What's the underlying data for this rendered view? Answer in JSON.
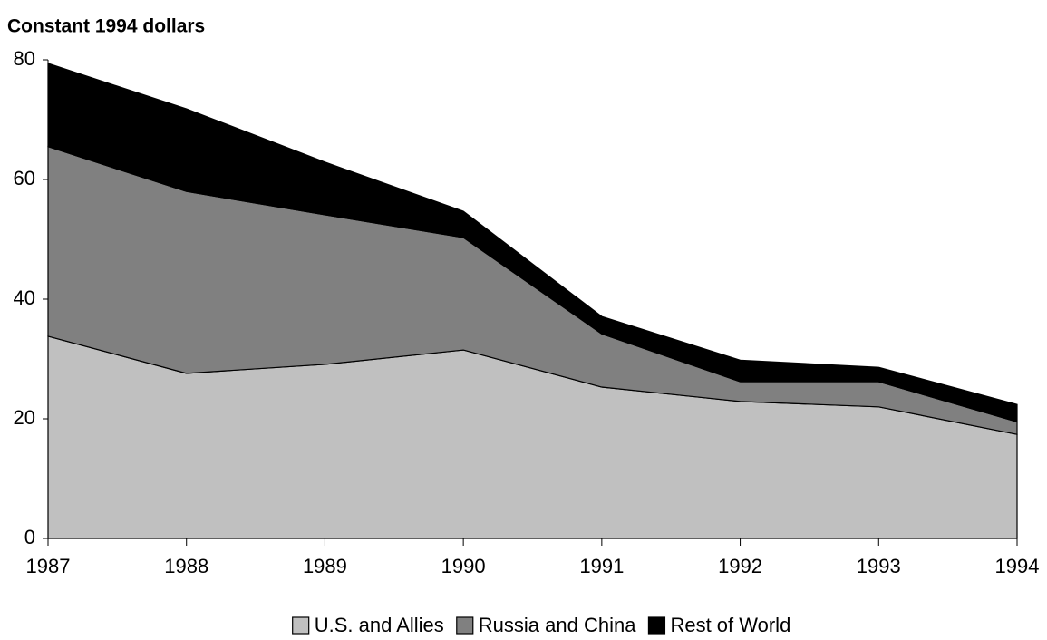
{
  "chart_data": {
    "type": "stacked_area",
    "title": "Constant 1994 dollars",
    "x": [
      1987,
      1988,
      1989,
      1990,
      1991,
      1992,
      1993,
      1994
    ],
    "xlim": [
      1987,
      1994
    ],
    "xticks": [
      1987,
      1988,
      1989,
      1990,
      1991,
      1992,
      1993,
      1994
    ],
    "ylim": [
      0,
      80
    ],
    "yticks": [
      0,
      20,
      40,
      60,
      80
    ],
    "series": [
      {
        "name": "U.S. and Allies",
        "color": "#c0c0c0",
        "values": [
          33.8,
          27.6,
          29.1,
          31.5,
          25.3,
          22.9,
          22.0,
          17.4
        ]
      },
      {
        "name": "Russia and China",
        "color": "#808080",
        "values": [
          31.7,
          30.4,
          25.0,
          18.8,
          8.9,
          3.3,
          4.2,
          2.1
        ]
      },
      {
        "name": "Rest of World",
        "color": "#000000",
        "values": [
          13.9,
          13.8,
          8.8,
          4.4,
          2.9,
          3.6,
          2.4,
          2.9
        ]
      }
    ],
    "legend": "bottom"
  }
}
